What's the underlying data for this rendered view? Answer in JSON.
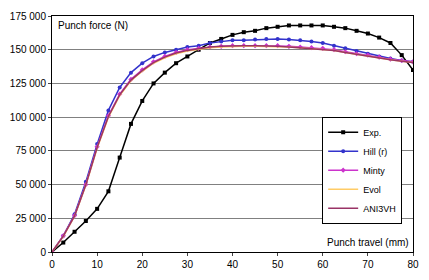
{
  "chart_data": {
    "type": "line",
    "ylabel": "Punch force (N)",
    "xlabel": "Punch travel (mm)",
    "x": [
      0,
      2.5,
      5,
      7.5,
      10,
      12.5,
      15,
      17.5,
      20,
      22.5,
      25,
      27.5,
      30,
      32.5,
      35,
      37.5,
      40,
      42.5,
      45,
      47.5,
      50,
      52.5,
      55,
      57.5,
      60,
      62.5,
      65,
      67.5,
      70,
      72.5,
      75,
      77.5,
      80
    ],
    "series": [
      {
        "name": "Exp.",
        "color": "#000000",
        "marker": "square",
        "values": [
          0,
          7000,
          15000,
          23000,
          32000,
          45000,
          70000,
          95000,
          112000,
          125000,
          133000,
          140000,
          145000,
          150000,
          155000,
          158000,
          161000,
          163000,
          164000,
          166000,
          167000,
          168000,
          168000,
          168000,
          168000,
          167000,
          166000,
          164000,
          162000,
          159000,
          155000,
          146000,
          135000
        ]
      },
      {
        "name": "Hill (r)",
        "color": "#3333cc",
        "marker": "circle",
        "values": [
          0,
          12000,
          28000,
          52000,
          80000,
          105000,
          122000,
          133000,
          140000,
          145000,
          148000,
          150000,
          152000,
          153000,
          155000,
          156000,
          157000,
          157000,
          157500,
          158000,
          158000,
          157500,
          157000,
          156000,
          155000,
          153000,
          151000,
          149000,
          147000,
          145000,
          143500,
          142000,
          141000
        ]
      },
      {
        "name": "Minty",
        "color": "#cc33cc",
        "marker": "diamond",
        "values": [
          0,
          12000,
          27000,
          50000,
          78000,
          101000,
          117000,
          128000,
          135000,
          141000,
          145000,
          148000,
          150000,
          151000,
          152000,
          152500,
          153000,
          153000,
          153000,
          153000,
          153000,
          152500,
          152000,
          151500,
          151000,
          150000,
          148500,
          147000,
          146000,
          144500,
          143000,
          142000,
          141000
        ]
      },
      {
        "name": "Evol",
        "color": "#ffcc66",
        "marker": "none",
        "values": [
          0,
          11500,
          26500,
          49500,
          77000,
          100000,
          116000,
          127000,
          134000,
          140000,
          144000,
          147000,
          149000,
          150500,
          151500,
          152000,
          152500,
          152500,
          152500,
          152500,
          152500,
          152000,
          151500,
          151000,
          150500,
          149500,
          148000,
          146500,
          145500,
          144000,
          142500,
          141500,
          140500
        ]
      },
      {
        "name": "ANI3VH",
        "color": "#993366",
        "marker": "none",
        "values": [
          0,
          11800,
          26800,
          49800,
          77500,
          100500,
          116500,
          127500,
          134500,
          140500,
          144500,
          147500,
          149500,
          151000,
          152000,
          152500,
          153000,
          153000,
          153000,
          153000,
          152500,
          152000,
          151500,
          151000,
          150500,
          149500,
          148000,
          146500,
          145500,
          144000,
          142500,
          141500,
          140500
        ]
      }
    ],
    "xlim": [
      0,
      80
    ],
    "xticks": [
      0,
      10,
      20,
      30,
      40,
      50,
      60,
      70,
      80
    ],
    "ylim": [
      0,
      175000
    ],
    "yticks": [
      0,
      {
        "value": 25000,
        "label": "25 000"
      },
      {
        "value": 50000,
        "label": "50 000"
      },
      {
        "value": 75000,
        "label": "75 000"
      },
      {
        "value": 100000,
        "label": "100 000"
      },
      {
        "value": 125000,
        "label": "125 000"
      },
      {
        "value": 150000,
        "label": "150 000"
      },
      {
        "value": 175000,
        "label": "175 000"
      }
    ],
    "grid": true,
    "legend": "right"
  }
}
